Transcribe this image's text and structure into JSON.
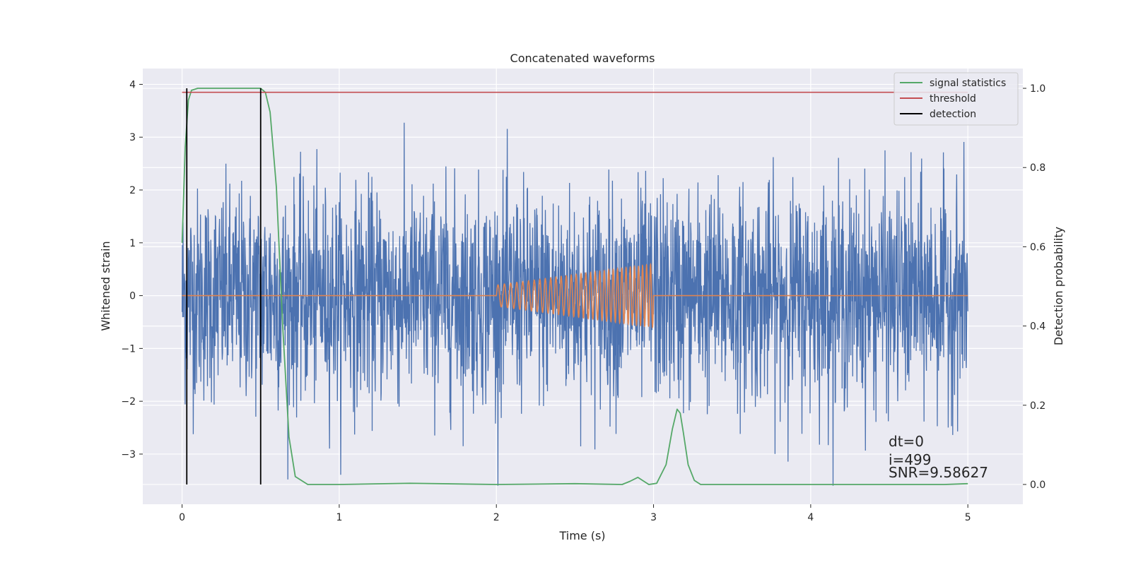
{
  "chart_data": {
    "type": "line",
    "title": "Concatenated waveforms",
    "xlabel": "Time (s)",
    "ylabel": "Whitened strain",
    "y2label": "Detection probability",
    "xlim": [
      -0.25,
      5.35
    ],
    "ylim": [
      -3.95,
      4.3
    ],
    "y2lim": [
      -0.05,
      1.05
    ],
    "xticks": [
      0,
      1,
      2,
      3,
      4,
      5
    ],
    "yticks": [
      -3,
      -2,
      -1,
      0,
      1,
      2,
      3,
      4
    ],
    "y2ticks": [
      "0.0",
      "0.2",
      "0.4",
      "0.6",
      "0.8",
      "1.0"
    ],
    "grid": true,
    "legend_position": "top-right",
    "series": [
      {
        "name": "",
        "role": "whitened noise strain",
        "color": "#4c72b0",
        "axis": "left",
        "x_range": [
          0,
          5
        ],
        "approx_amplitude": 1.0
      },
      {
        "name": "",
        "role": "injected chirp template",
        "color": "#dd8452",
        "axis": "left",
        "x_range": [
          2,
          3
        ],
        "amplitude_range": [
          0.2,
          0.6
        ]
      },
      {
        "name": "signal statistics",
        "color": "#55a868",
        "axis": "right",
        "x": [
          0,
          0.02,
          0.04,
          0.06,
          0.1,
          0.2,
          0.3,
          0.4,
          0.5,
          0.53,
          0.56,
          0.6,
          0.64,
          0.68,
          0.72,
          0.8,
          1.0,
          1.45,
          2.0,
          2.5,
          2.8,
          2.85,
          2.9,
          2.93,
          2.97,
          3.02,
          3.08,
          3.12,
          3.15,
          3.17,
          3.19,
          3.22,
          3.26,
          3.3,
          3.5,
          4.0,
          4.5,
          4.85,
          5.0
        ],
        "y": [
          0.61,
          0.85,
          0.97,
          0.995,
          1.0,
          1.0,
          1.0,
          1.0,
          1.0,
          0.99,
          0.94,
          0.75,
          0.4,
          0.12,
          0.02,
          0.0,
          0.0,
          0.003,
          0.0,
          0.002,
          0.0,
          0.008,
          0.018,
          0.01,
          0.0,
          0.003,
          0.05,
          0.14,
          0.19,
          0.18,
          0.13,
          0.05,
          0.01,
          0.0,
          0.0,
          0.0,
          0.0,
          0.0,
          0.002
        ]
      },
      {
        "name": "threshold",
        "color": "#c44e52",
        "axis": "right",
        "x": [
          0,
          5
        ],
        "y": [
          0.99,
          0.99
        ]
      },
      {
        "name": "detection",
        "color": "#000000",
        "axis": "right",
        "type": "vlines",
        "x": [
          0.03,
          0.5
        ],
        "y_range": [
          0.0,
          1.0
        ]
      }
    ],
    "annotations": [
      "dt=0",
      "i=499",
      "SNR=9.58627"
    ]
  }
}
